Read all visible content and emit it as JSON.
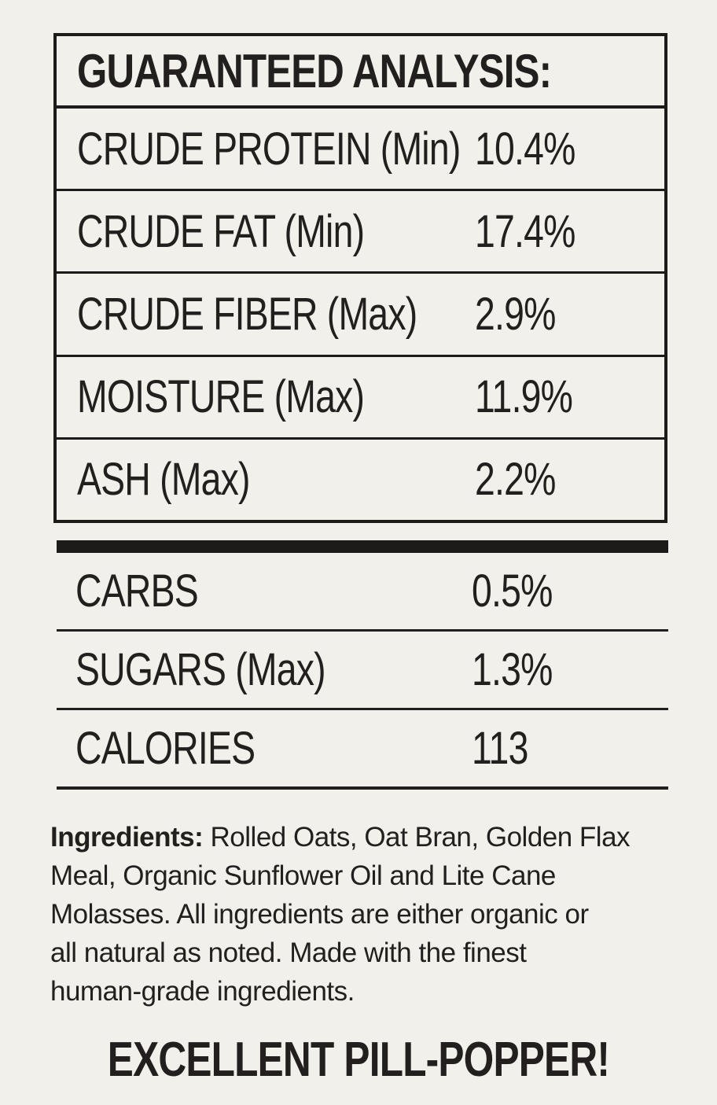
{
  "colors": {
    "background": "#f2f0ea",
    "ink": "#231f1f"
  },
  "guaranteed_analysis": {
    "title": "GUARANTEED ANALYSIS:",
    "rows": [
      {
        "label": "CRUDE PROTEIN (Min)",
        "value": "10.4%"
      },
      {
        "label": "CRUDE FAT (Min)",
        "value": "17.4%"
      },
      {
        "label": "CRUDE FIBER (Max)",
        "value": "2.9%"
      },
      {
        "label": "MOISTURE (Max)",
        "value": "11.9%"
      },
      {
        "label": "ASH (Max)",
        "value": "2.2%"
      }
    ]
  },
  "additional_facts": {
    "rows": [
      {
        "label": "CARBS",
        "value": "0.5%"
      },
      {
        "label": "SUGARS (Max)",
        "value": "1.3%"
      },
      {
        "label": "CALORIES",
        "value": "113"
      }
    ]
  },
  "ingredients": {
    "label": "Ingredients:",
    "line1_rest": " Rolled Oats, Oat Bran, Golden Flax",
    "lines": [
      "Meal, Organic Sunflower Oil and Lite Cane",
      "Molasses. All ingredients are either organic or",
      "all natural as noted. Made with the finest",
      "human-grade ingredients."
    ],
    "full_text": "Ingredients: Rolled Oats, Oat Bran, Golden Flax Meal, Organic Sunflower Oil and Lite Cane Molasses. All ingredients are either organic or all natural as noted. Made with the finest human-grade ingredients."
  },
  "footer": {
    "tagline": "EXCELLENT PILL-POPPER!"
  }
}
